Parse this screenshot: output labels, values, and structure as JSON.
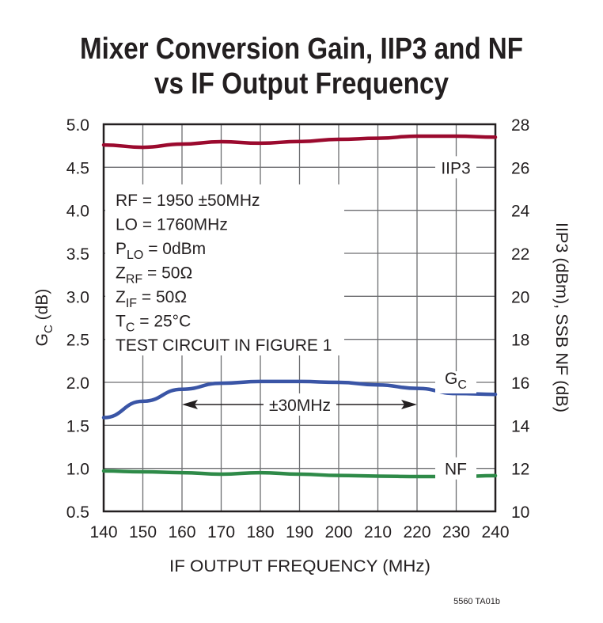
{
  "chart_data": {
    "type": "line",
    "title": [
      "Mixer Conversion Gain, IIP3 and NF",
      "vs IF Output Frequency"
    ],
    "xlabel": "IF OUTPUT FREQUENCY (MHz)",
    "ylabel": {
      "main": "G",
      "sub": "C",
      "rest": " (dB)"
    },
    "y2label": "IIP3 (dBm), SSB NF (dB)",
    "xlim": [
      140,
      240
    ],
    "ylim": [
      0.5,
      5.0
    ],
    "y2lim": [
      10,
      28
    ],
    "x_ticks": [
      "140",
      "150",
      "160",
      "170",
      "180",
      "190",
      "200",
      "210",
      "220",
      "230",
      "240"
    ],
    "y_ticks": [
      "0.5",
      "1.0",
      "1.5",
      "2.0",
      "2.5",
      "3.0",
      "3.5",
      "4.0",
      "4.5",
      "5.0"
    ],
    "y2_ticks": [
      "10",
      "12",
      "14",
      "16",
      "18",
      "20",
      "22",
      "24",
      "26",
      "28"
    ],
    "grid": true,
    "x": [
      140,
      150,
      160,
      170,
      180,
      190,
      200,
      210,
      220,
      230,
      240
    ],
    "series": [
      {
        "name": "IIP3",
        "axis": "right",
        "color": "#9b0a2e",
        "values": [
          27.04,
          26.93,
          27.08,
          27.19,
          27.12,
          27.2,
          27.3,
          27.35,
          27.45,
          27.45,
          27.4
        ]
      },
      {
        "name": "GC",
        "label_main": "G",
        "label_sub": "C",
        "axis": "left",
        "color": "#3a55a6",
        "values": [
          1.59,
          1.78,
          1.92,
          1.99,
          2.01,
          2.01,
          2.0,
          1.97,
          1.93,
          1.87,
          1.86
        ]
      },
      {
        "name": "NF",
        "axis": "right",
        "color": "#2e8a48",
        "values": [
          11.88,
          11.84,
          11.8,
          11.73,
          11.8,
          11.73,
          11.67,
          11.64,
          11.62,
          11.62,
          11.66
        ]
      }
    ],
    "annotations": {
      "conditions": [
        {
          "main": "RF = 1950 ±50MHz"
        },
        {
          "main": "LO = 1760MHz"
        },
        {
          "main": "P",
          "sub": "LO",
          "rest": " = 0dBm"
        },
        {
          "main": "Z",
          "sub": "RF",
          "rest": " = 50Ω"
        },
        {
          "main": "Z",
          "sub": "IF",
          "rest": " = 50Ω"
        },
        {
          "main": "T",
          "sub": "C",
          "rest": " = 25°C"
        },
        {
          "main": "TEST CIRCUIT IN FIGURE 1"
        }
      ],
      "span_label": "±30MHz",
      "span_from": 160,
      "span_to": 220
    },
    "footnote": "5560 TA01b"
  }
}
